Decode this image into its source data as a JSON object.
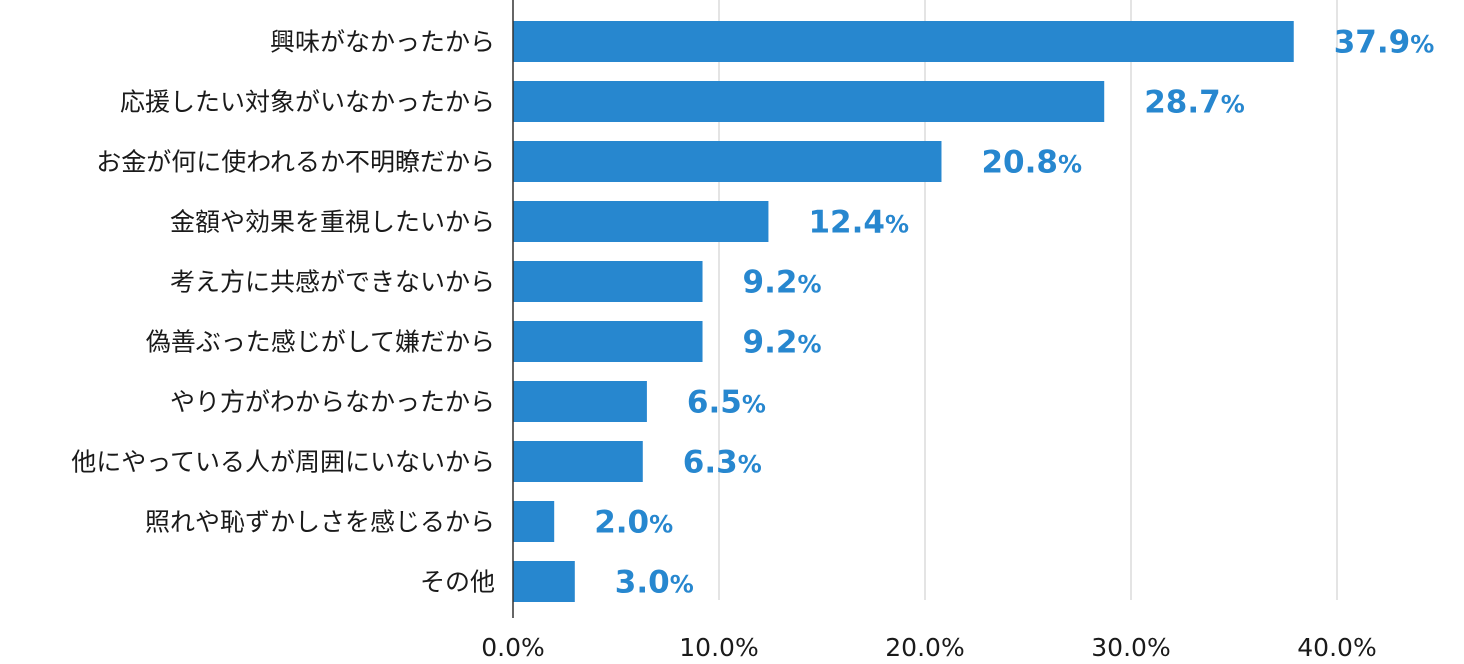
{
  "chart_data": {
    "type": "bar",
    "orientation": "horizontal",
    "title": "",
    "xlabel": "",
    "ylabel": "",
    "categories": [
      "興味がなかったから",
      "応援したい対象がいなかったから",
      "お金が何に使われるか不明瞭だから",
      "金額や効果を重視したいから",
      "考え方に共感ができないから",
      "偽善ぶった感じがして嫌だから",
      "やり方がわからなかったから",
      "他にやっている人が周囲にいないから",
      "照れや恥ずかしさを感じるから",
      "その他"
    ],
    "values": [
      37.9,
      28.7,
      20.8,
      12.4,
      9.2,
      9.2,
      6.5,
      6.3,
      2.0,
      3.0
    ],
    "value_labels": [
      "37.9",
      "28.7",
      "20.8",
      "12.4",
      "9.2",
      "9.2",
      "6.5",
      "6.3",
      "2.0",
      "3.0"
    ],
    "value_unit": "%",
    "xlim": [
      0,
      40
    ],
    "ticks": [
      0,
      10,
      20,
      30,
      40
    ],
    "tick_labels": [
      "0.0%",
      "10.0%",
      "20.0%",
      "30.0%",
      "40.0%"
    ],
    "grid": "vertical",
    "legend": "none",
    "bar_color": "#2787cf",
    "value_label_color": "#2787cf"
  }
}
